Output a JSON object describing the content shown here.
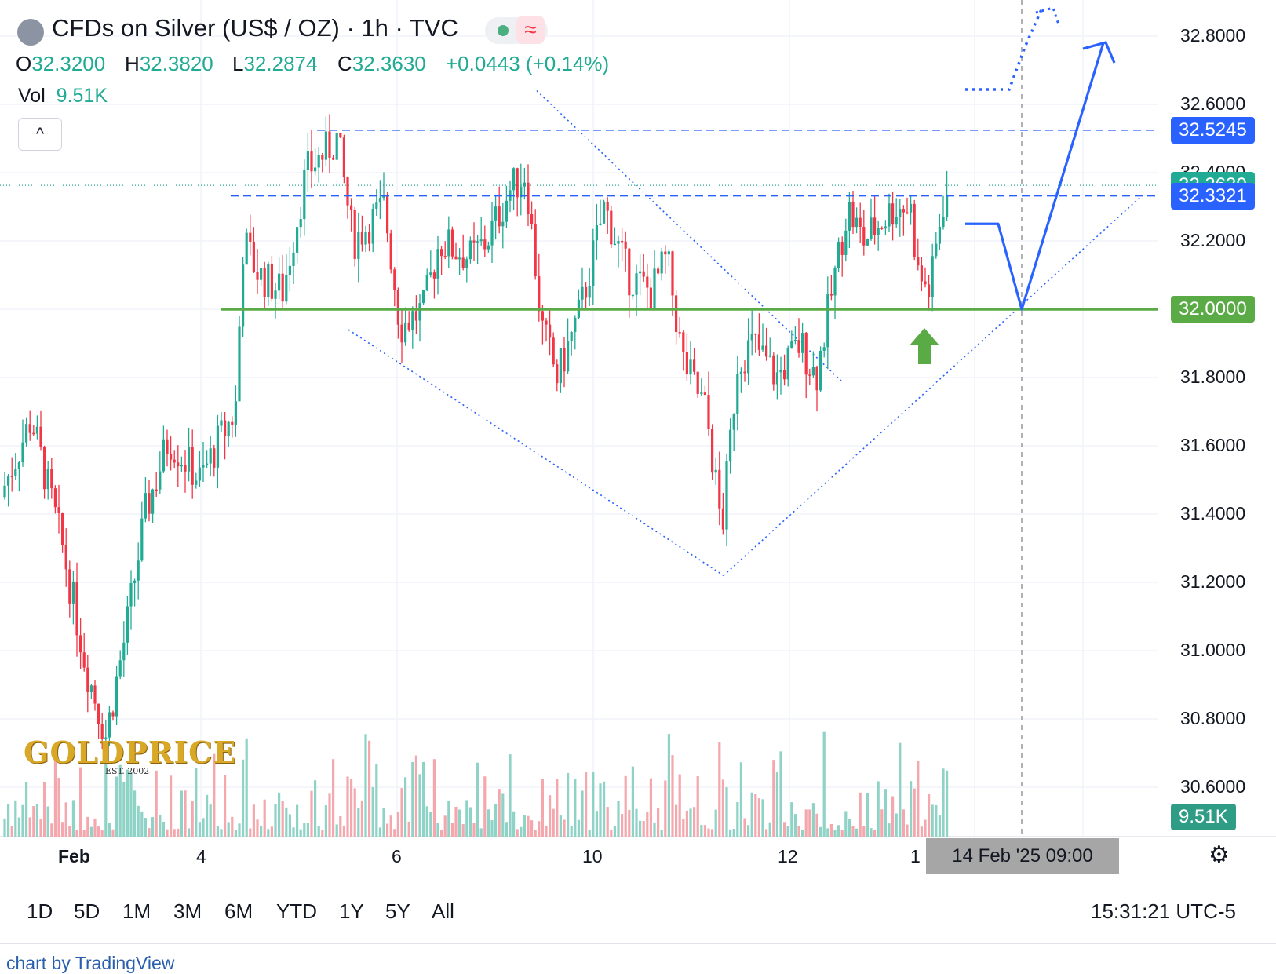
{
  "header": {
    "title": "CFDs on Silver (US$ / OZ) · 1h · TVC",
    "status_icon": "≈",
    "ohlc": {
      "o_label": "O",
      "o_value": "32.3200",
      "h_label": "H",
      "h_value": "32.3820",
      "l_label": "L",
      "l_value": "32.2874",
      "c_label": "C",
      "c_value": "32.3630",
      "change": "+0.0443 (+0.14%)"
    },
    "volume_label": "Vol",
    "volume_value": "9.51K",
    "collapse_icon": "^"
  },
  "y_axis": {
    "ticks": [
      "32.8000",
      "32.6000",
      "32.4000",
      "32.2000",
      "31.8000",
      "31.6000",
      "31.4000",
      "31.2000",
      "31.0000",
      "30.8000",
      "30.6000"
    ],
    "tags": {
      "resistance_high": "32.5245",
      "last_price": "32.3630",
      "resistance_low": "32.3321",
      "support": "32.0000",
      "volume": "9.51K"
    }
  },
  "x_axis": {
    "ticks": [
      "Feb",
      "4",
      "6",
      "10",
      "12",
      "1"
    ],
    "crosshair_label": "14 Feb '25   09:00"
  },
  "ranges": [
    "1D",
    "5D",
    "1M",
    "3M",
    "6M",
    "YTD",
    "1Y",
    "5Y",
    "All"
  ],
  "clock": "15:31:21 UTC-5",
  "credit": "chart by TradingView",
  "watermark": {
    "brand": "GOLDPRICE",
    "est": "EST. 2002"
  },
  "colors": {
    "up": "#22ab94",
    "down": "#f23645",
    "support": "#5aaa46",
    "projection": "#2962ff"
  },
  "chart_data": {
    "type": "candlestick",
    "ylim": [
      30.5,
      32.9
    ],
    "x": [
      "Feb 3",
      "Feb 4",
      "Feb 5",
      "Feb 6",
      "Feb 7",
      "Feb 10",
      "Feb 11",
      "Feb 12",
      "Feb 13",
      "Feb 14"
    ],
    "close": [
      30.95,
      31.55,
      32.45,
      32.15,
      32.25,
      32.15,
      31.55,
      31.85,
      32.35,
      32.36
    ],
    "series": [
      {
        "name": "price",
        "values": [
          30.95,
          31.55,
          32.45,
          32.15,
          32.25,
          32.15,
          31.55,
          31.85,
          32.35,
          32.36
        ]
      }
    ],
    "levels": [
      {
        "value": 32.5245,
        "style": "dashed"
      },
      {
        "value": 32.3321,
        "style": "dashed"
      },
      {
        "value": 32.0,
        "style": "solid"
      }
    ],
    "last": 32.363,
    "grid": true,
    "legend": "top-left"
  }
}
